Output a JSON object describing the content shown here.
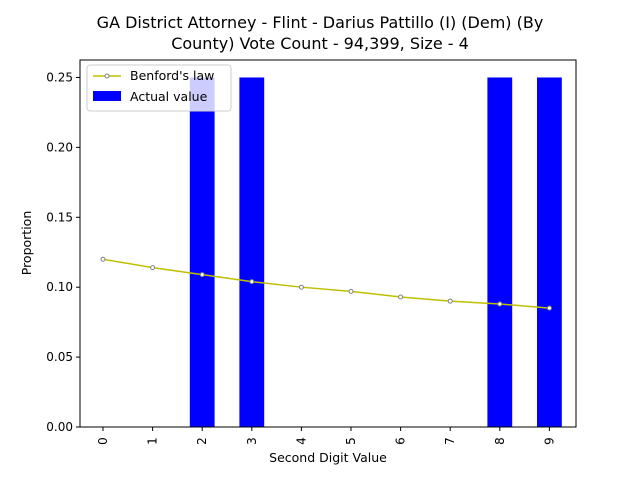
{
  "chart_data": {
    "type": "bar",
    "title_lines": [
      "GA District Attorney - Flint - Darius Pattillo (I) (Dem) (By",
      "County) Vote Count - 94,399, Size - 4"
    ],
    "xlabel": "Second Digit Value",
    "ylabel": "Proportion",
    "categories": [
      "0",
      "1",
      "2",
      "3",
      "4",
      "5",
      "6",
      "7",
      "8",
      "9"
    ],
    "y_ticks": [
      "0.00",
      "0.05",
      "0.10",
      "0.15",
      "0.20",
      "0.25"
    ],
    "ylim": [
      0,
      0.2625
    ],
    "legend_position": "top-left",
    "series": [
      {
        "name": "Actual value",
        "kind": "bar",
        "color": "#0000ff",
        "values": [
          0,
          0,
          0.25,
          0.25,
          0,
          0,
          0,
          0,
          0.25,
          0.25
        ]
      },
      {
        "name": "Benford's law",
        "kind": "line",
        "color": "#bfbf00",
        "marker_edge": "#808080",
        "values": [
          0.12,
          0.114,
          0.109,
          0.104,
          0.1,
          0.097,
          0.093,
          0.09,
          0.088,
          0.085
        ]
      }
    ]
  }
}
